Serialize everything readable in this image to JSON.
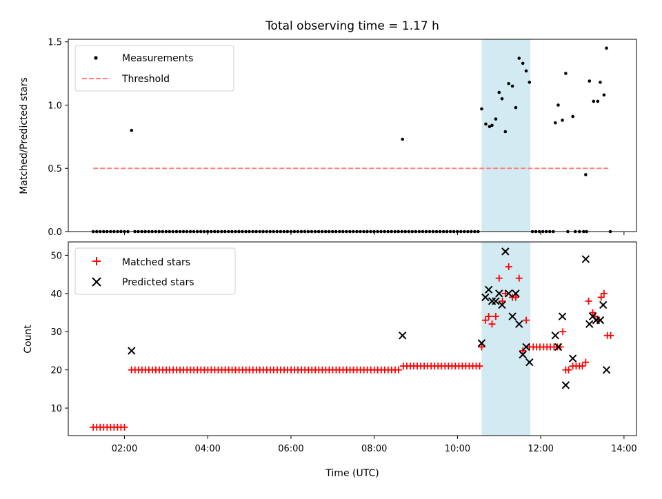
{
  "chart_data": {
    "title": "Total observing time = 1.17 h",
    "xlabel": "Time (UTC)",
    "x_tick_labels": [
      "02:00",
      "04:00",
      "06:00",
      "08:00",
      "10:00",
      "12:00",
      "14:00"
    ],
    "xlim_hours": [
      0.65,
      14.3
    ],
    "observing_window_hours": [
      10.58,
      11.75
    ],
    "window_color": "#add8e6",
    "panels": [
      {
        "type": "scatter",
        "ylabel": "Matched/Predicted stars",
        "ylim": [
          0,
          1.52
        ],
        "y_ticks": [
          "0.0",
          "0.5",
          "1.0",
          "1.5"
        ],
        "y_tick_values": [
          0,
          0.5,
          1.0,
          1.5
        ],
        "legend": {
          "location": "top-left",
          "entries": [
            {
              "label": "Measurements",
              "marker": "dot",
              "color": "#000000"
            },
            {
              "label": "Threshold",
              "marker": "dashed-line",
              "color": "#ff7f7f"
            }
          ]
        },
        "threshold": {
          "y": 0.5,
          "x_range_hours": [
            1.25,
            13.67
          ],
          "color": "#ff7f7f"
        },
        "measurements": {
          "zero_ranges_hours": [
            [
              1.25,
              2.15
            ],
            [
              2.25,
              10.55
            ],
            [
              11.8,
              12.3
            ]
          ],
          "zero_extra_hours": [
            12.65,
            12.83,
            12.93,
            13.03,
            13.1,
            13.67
          ],
          "points": [
            [
              2.17,
              0.8
            ],
            [
              8.68,
              0.73
            ],
            [
              10.58,
              0.97
            ],
            [
              10.68,
              0.85
            ],
            [
              10.77,
              0.83
            ],
            [
              10.83,
              0.84
            ],
            [
              10.92,
              0.89
            ],
            [
              11.0,
              1.1
            ],
            [
              11.07,
              1.05
            ],
            [
              11.15,
              0.79
            ],
            [
              11.23,
              1.17
            ],
            [
              11.32,
              1.15
            ],
            [
              11.4,
              0.98
            ],
            [
              11.48,
              1.37
            ],
            [
              11.57,
              1.33
            ],
            [
              11.65,
              1.27
            ],
            [
              11.73,
              1.18
            ],
            [
              12.35,
              0.86
            ],
            [
              12.42,
              1.0
            ],
            [
              12.52,
              0.88
            ],
            [
              12.6,
              1.25
            ],
            [
              12.77,
              0.91
            ],
            [
              13.08,
              0.45
            ],
            [
              13.17,
              1.19
            ],
            [
              13.27,
              1.03
            ],
            [
              13.37,
              1.03
            ],
            [
              13.43,
              1.18
            ],
            [
              13.52,
              1.08
            ],
            [
              13.58,
              1.45
            ]
          ]
        }
      },
      {
        "type": "scatter",
        "ylabel": "Count",
        "ylim": [
          2.8,
          53.5
        ],
        "y_ticks": [
          "10",
          "20",
          "30",
          "40",
          "50"
        ],
        "y_tick_values": [
          10,
          20,
          30,
          40,
          50
        ],
        "legend": {
          "location": "top-left",
          "entries": [
            {
              "label": "Matched stars",
              "marker": "plus",
              "color": "#ff0000"
            },
            {
              "label": "Predicted stars",
              "marker": "x",
              "color": "#000000"
            }
          ]
        },
        "matched_ranges": [
          {
            "x_range_hours": [
              1.25,
              2.08
            ],
            "value": 5
          },
          {
            "x_range_hours": [
              2.17,
              8.6
            ],
            "value": 20
          },
          {
            "x_range_hours": [
              8.7,
              10.55
            ],
            "value": 21
          }
        ],
        "matched_points": [
          [
            10.58,
            26
          ],
          [
            10.67,
            33
          ],
          [
            10.75,
            34
          ],
          [
            10.83,
            32
          ],
          [
            10.92,
            34
          ],
          [
            11.0,
            44
          ],
          [
            11.08,
            38
          ],
          [
            11.15,
            40
          ],
          [
            11.23,
            47
          ],
          [
            11.32,
            39
          ],
          [
            11.4,
            39
          ],
          [
            11.48,
            44
          ],
          [
            11.57,
            25
          ],
          [
            11.65,
            33
          ],
          [
            11.73,
            26
          ],
          [
            11.82,
            26
          ],
          [
            11.9,
            26
          ],
          [
            11.98,
            26
          ],
          [
            12.07,
            26
          ],
          [
            12.15,
            26
          ],
          [
            12.23,
            26
          ],
          [
            12.32,
            26
          ],
          [
            12.4,
            26
          ],
          [
            12.47,
            26
          ],
          [
            12.53,
            30
          ],
          [
            12.6,
            20
          ],
          [
            12.67,
            20
          ],
          [
            12.77,
            21
          ],
          [
            12.85,
            21
          ],
          [
            12.93,
            21
          ],
          [
            13.0,
            21
          ],
          [
            13.08,
            22
          ],
          [
            13.15,
            38
          ],
          [
            13.25,
            35
          ],
          [
            13.3,
            34
          ],
          [
            13.38,
            33
          ],
          [
            13.45,
            39
          ],
          [
            13.52,
            40
          ],
          [
            13.6,
            29
          ],
          [
            13.68,
            29
          ]
        ],
        "predicted_points": [
          [
            2.17,
            25
          ],
          [
            8.68,
            29
          ],
          [
            10.58,
            27
          ],
          [
            10.67,
            39
          ],
          [
            10.75,
            41
          ],
          [
            10.83,
            38
          ],
          [
            10.92,
            38
          ],
          [
            11.0,
            40
          ],
          [
            11.07,
            37
          ],
          [
            11.15,
            51
          ],
          [
            11.23,
            40
          ],
          [
            11.32,
            34
          ],
          [
            11.4,
            40
          ],
          [
            11.48,
            32
          ],
          [
            11.57,
            24
          ],
          [
            11.65,
            26
          ],
          [
            11.73,
            22
          ],
          [
            12.35,
            29
          ],
          [
            12.42,
            26
          ],
          [
            12.52,
            34
          ],
          [
            12.6,
            16
          ],
          [
            12.77,
            23
          ],
          [
            13.08,
            49
          ],
          [
            13.17,
            32
          ],
          [
            13.25,
            34
          ],
          [
            13.33,
            33
          ],
          [
            13.43,
            33
          ],
          [
            13.5,
            37
          ],
          [
            13.58,
            20
          ]
        ]
      }
    ]
  }
}
